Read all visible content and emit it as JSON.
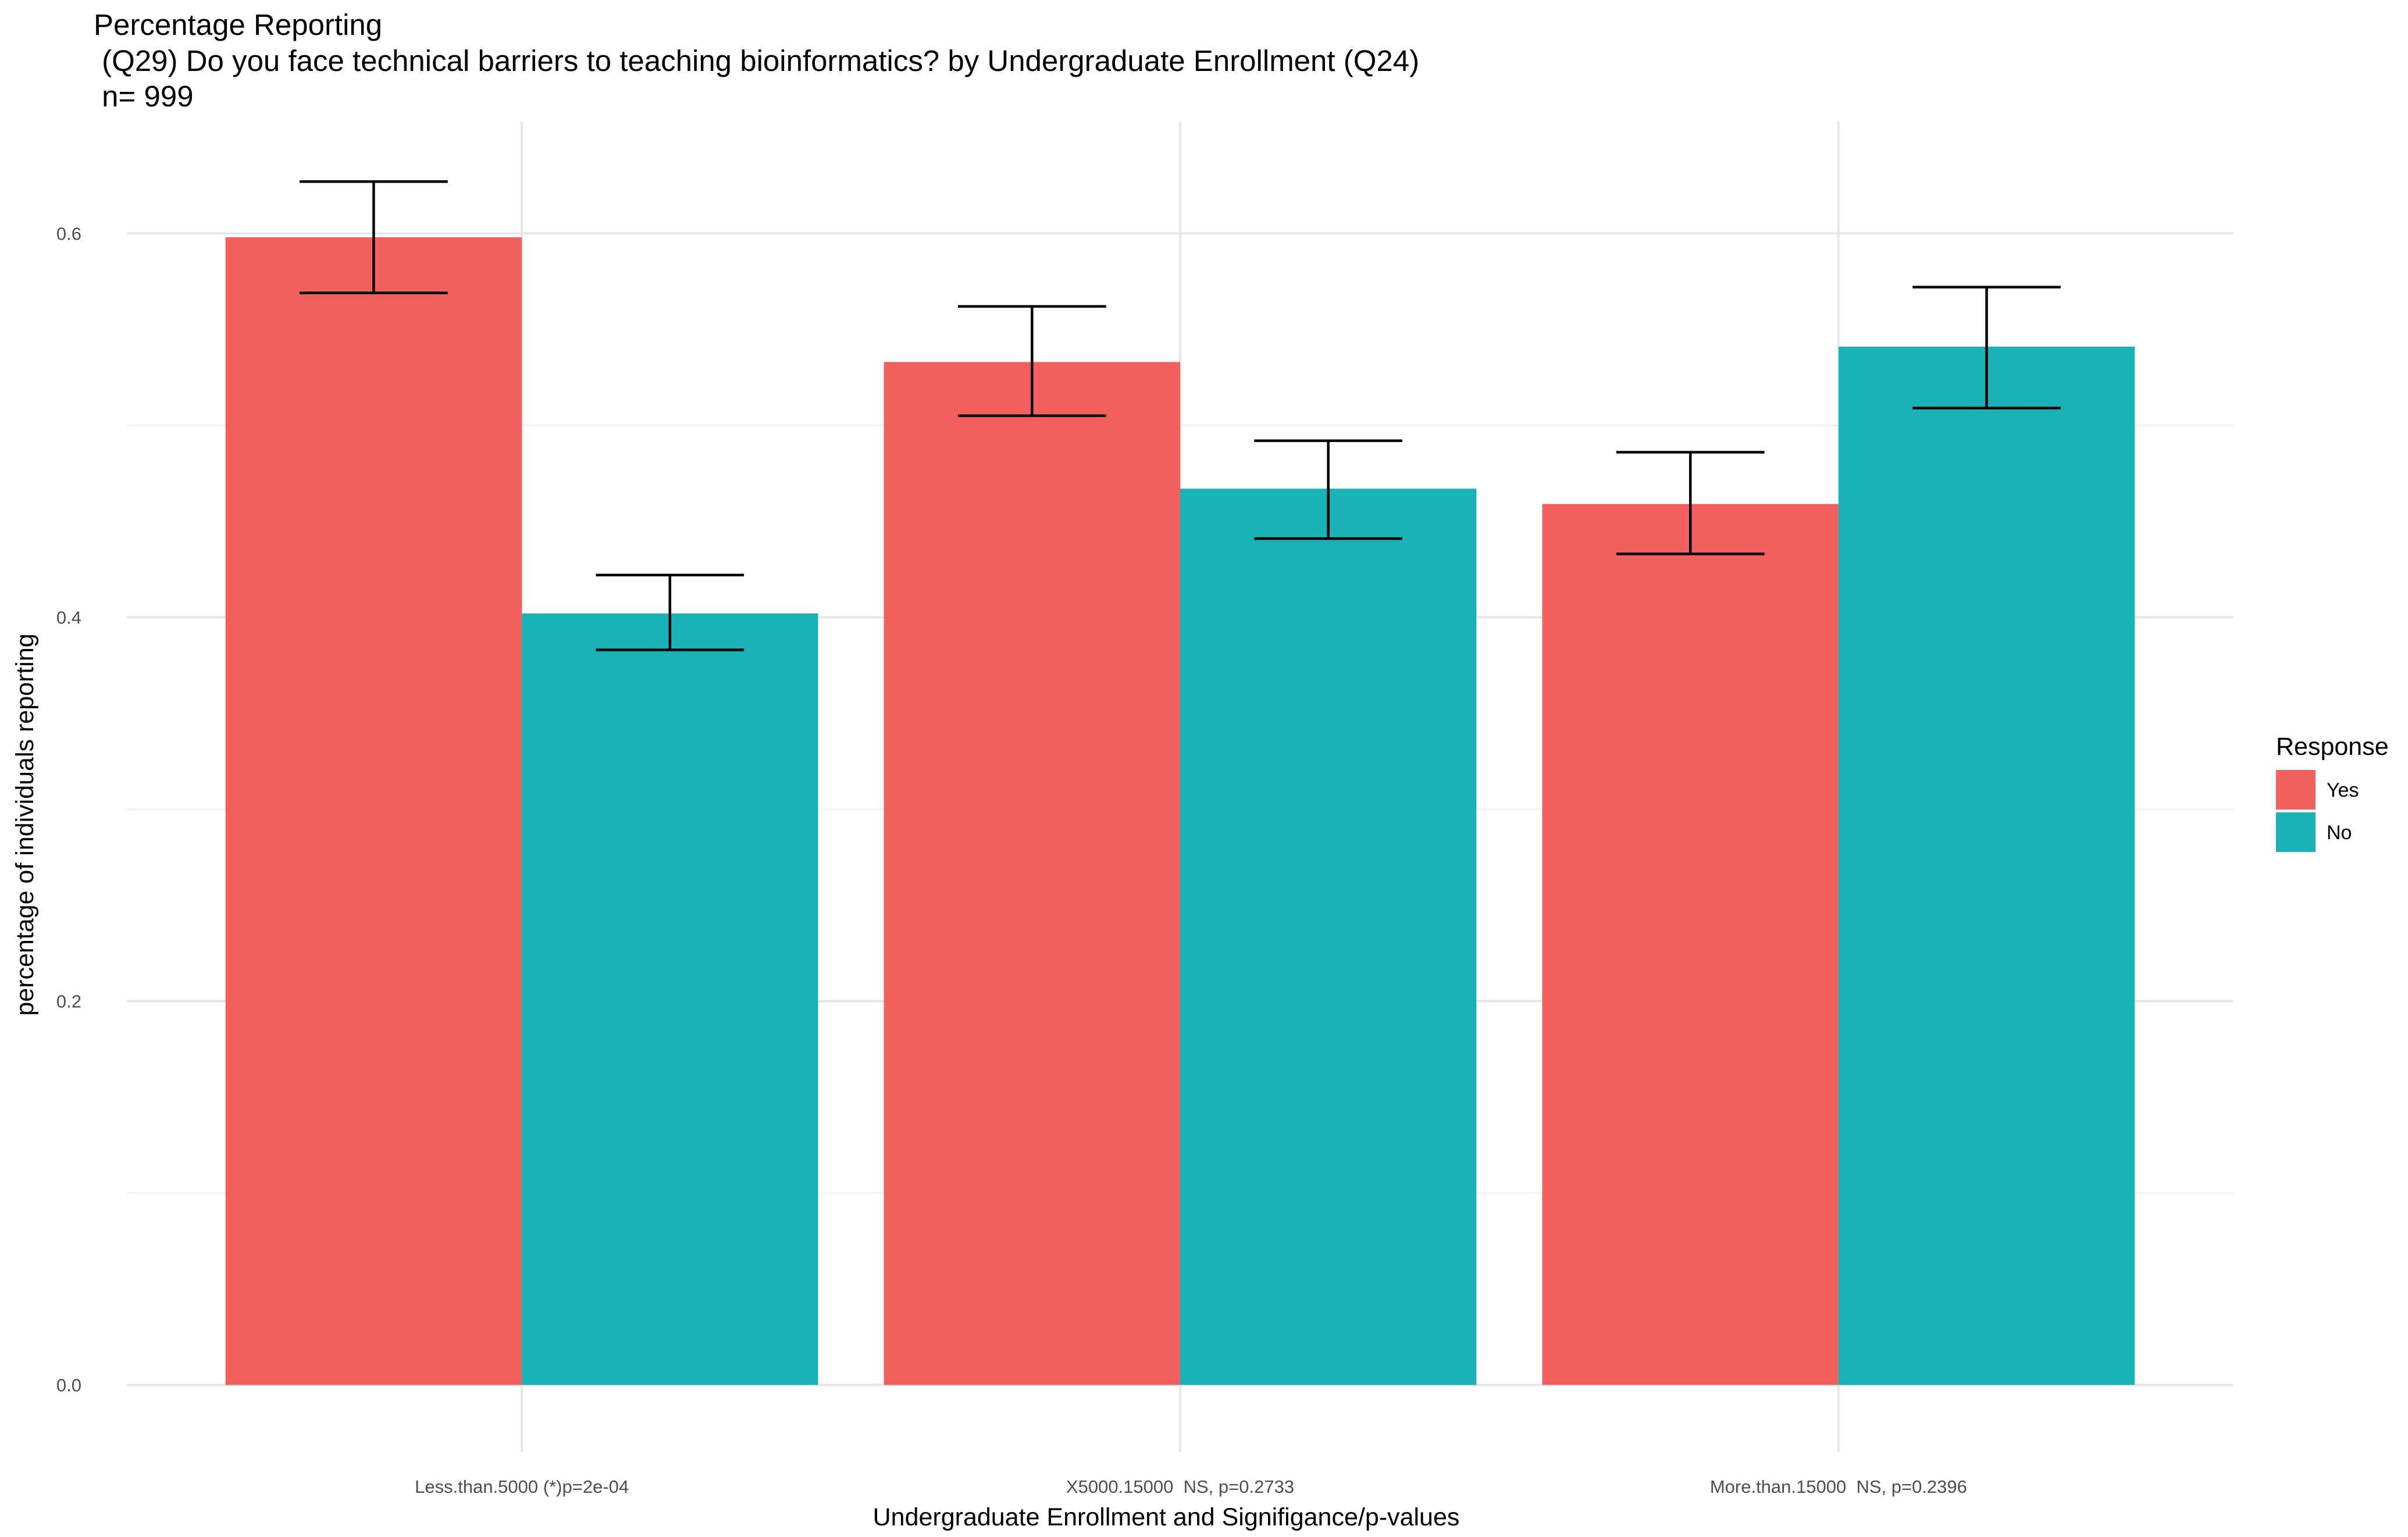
{
  "chart_data": {
    "type": "bar",
    "title_lines": [
      "Percentage Reporting",
      " (Q29) Do you face technical barriers to teaching bioinformatics? by Undergraduate Enrollment (Q24)",
      " n= 999"
    ],
    "xlabel": "Undergraduate Enrollment and Signifigance/p-values",
    "ylabel": "percentage of individuals reporting",
    "categories": [
      "Less.than.5000 (*)p=2e-04",
      "X5000.15000  NS, p=0.2733",
      "More.than.15000  NS, p=0.2396"
    ],
    "series": [
      {
        "name": "Yes",
        "color": "#F25F5C",
        "values": [
          0.598,
          0.533,
          0.459
        ],
        "err_low": [
          0.569,
          0.505,
          0.433
        ],
        "err_high": [
          0.627,
          0.562,
          0.486
        ]
      },
      {
        "name": "No",
        "color": "#19B2B7",
        "values": [
          0.402,
          0.467,
          0.541
        ],
        "err_low": [
          0.383,
          0.441,
          0.509
        ],
        "err_high": [
          0.422,
          0.492,
          0.572
        ]
      }
    ],
    "ylim": [
      -0.035,
      0.658
    ],
    "yticks": [
      "0.0",
      "0.2",
      "0.4",
      "0.6"
    ],
    "ytick_values": [
      0.0,
      0.2,
      0.4,
      0.6
    ],
    "legend": {
      "title": "Response",
      "position": "right"
    },
    "grid": true
  }
}
